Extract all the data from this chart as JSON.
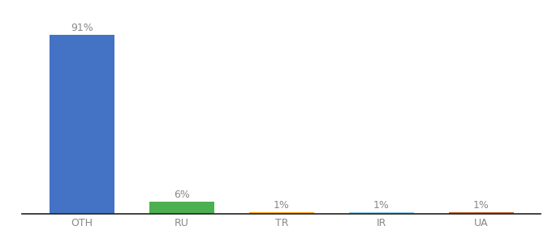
{
  "categories": [
    "OTH",
    "RU",
    "TR",
    "IR",
    "UA"
  ],
  "values": [
    91,
    6,
    1,
    1,
    1
  ],
  "bar_colors": [
    "#4472c4",
    "#4caf50",
    "#ffa500",
    "#87ceeb",
    "#c0622b"
  ],
  "labels": [
    "91%",
    "6%",
    "1%",
    "1%",
    "1%"
  ],
  "ylim": [
    0,
    100
  ],
  "background_color": "#ffffff",
  "label_fontsize": 9,
  "tick_fontsize": 9,
  "bar_width": 0.65
}
